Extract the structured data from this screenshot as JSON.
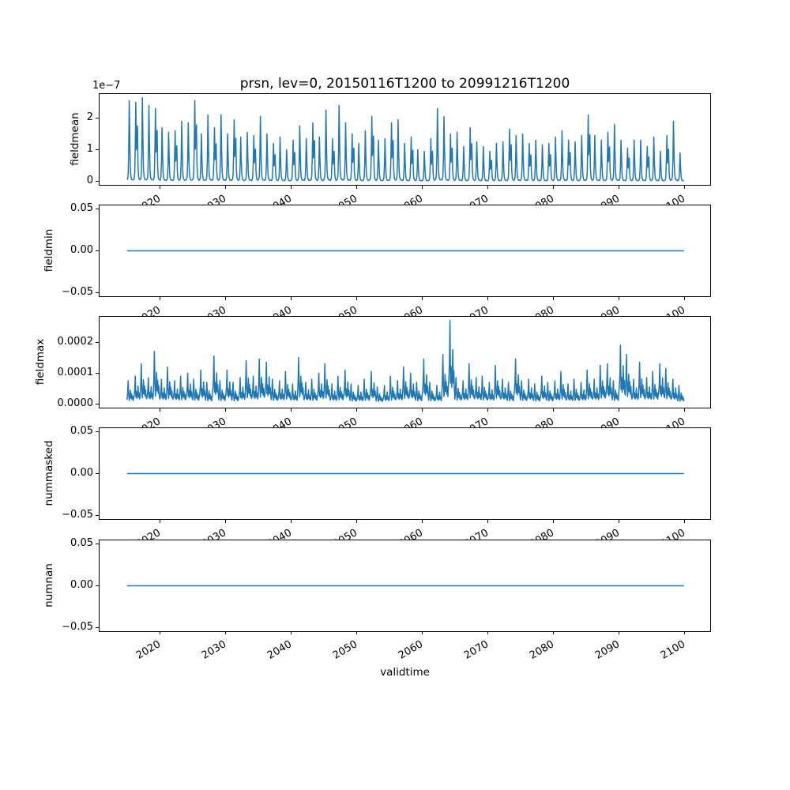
{
  "figure": {
    "title": "prsn, lev=0, 20150116T1200 to 20991216T1200",
    "xlabel": "validtime",
    "background_color": "#ffffff",
    "line_color": "#1f77b4",
    "axis_color": "#000000"
  },
  "x_axis": {
    "label": "validtime",
    "tick_labels": [
      "2020",
      "2030",
      "2040",
      "2050",
      "2060",
      "2070",
      "2080",
      "2090",
      "2100"
    ],
    "tick_values": [
      2020,
      2030,
      2040,
      2050,
      2060,
      2070,
      2080,
      2090,
      2100
    ],
    "xlim": [
      2010.74,
      2104.26
    ],
    "data_start": "20150116T1200",
    "data_end": "20991216T1200",
    "tick_label_rotation_deg": 30
  },
  "chart_data": [
    {
      "type": "line",
      "ylabel": "fieldmean",
      "y_offset_text": "1e−7",
      "y_tick_labels": [
        "0",
        "1",
        "2"
      ],
      "y_tick_values": [
        0,
        1e-07,
        2e-07
      ],
      "ylim": [
        -1.325e-08,
        2.7825e-07
      ],
      "series": {
        "name": "fieldmean",
        "kind": "annual_spikes",
        "value_scale": 1e-07,
        "annual_peak_values": [
          2.55,
          2.5,
          2.65,
          2.4,
          2.3,
          1.7,
          1.55,
          1.6,
          1.9,
          1.85,
          2.55,
          1.5,
          2.1,
          1.7,
          2.1,
          1.5,
          1.95,
          1.4,
          1.55,
          1.45,
          2.05,
          1.5,
          1.2,
          1.4,
          1.0,
          1.3,
          1.75,
          1.35,
          1.85,
          1.4,
          2.25,
          1.35,
          2.4,
          1.85,
          1.5,
          1.2,
          1.6,
          2.05,
          1.3,
          1.35,
          1.85,
          1.95,
          1.2,
          1.4,
          1.0,
          0.95,
          1.35,
          2.3,
          2.05,
          1.5,
          1.55,
          1.1,
          1.7,
          1.25,
          1.1,
          0.95,
          1.2,
          1.25,
          1.65,
          1.45,
          1.5,
          1.2,
          1.3,
          1.15,
          1.2,
          1.4,
          1.6,
          1.3,
          1.25,
          1.45,
          2.1,
          1.45,
          1.3,
          1.55,
          1.8,
          1.3,
          1.05,
          1.3,
          1.3,
          1.1,
          1.4,
          0.95,
          1.45,
          1.9,
          0.9
        ],
        "start_year": 2015,
        "monthly_profile_single": [
          0.02,
          0.03,
          0.08,
          0.35,
          1.0,
          0.5,
          0.15,
          0.06,
          0.03,
          0.02,
          0.02,
          0.02
        ],
        "monthly_profile_double": [
          0.02,
          0.03,
          0.1,
          0.45,
          1.0,
          0.4,
          0.6,
          0.7,
          0.2,
          0.06,
          0.03,
          0.02
        ],
        "profile_rule": "years with index % 3 == 1 use the double profile"
      }
    },
    {
      "type": "line",
      "ylabel": "fieldmin",
      "y_tick_labels": [
        "−0.05",
        "0.00",
        "0.05"
      ],
      "y_tick_values": [
        -0.05,
        0.0,
        0.05
      ],
      "ylim": [
        -0.055,
        0.055
      ],
      "series": {
        "name": "fieldmin",
        "kind": "constant",
        "constant_value": 0.0,
        "x_start": 2015.042,
        "x_end": 2099.958
      }
    },
    {
      "type": "line",
      "ylabel": "fieldmax",
      "y_tick_labels": [
        "0.0000",
        "0.0001",
        "0.0002"
      ],
      "y_tick_values": [
        0.0,
        0.0001,
        0.0002
      ],
      "ylim": [
        -1.35e-05,
        0.0002835
      ],
      "series": {
        "name": "fieldmax",
        "kind": "annual_spikes",
        "value_scale": 0.0001,
        "baseline_value": 4e-06,
        "annual_peak_values": [
          0.75,
          0.9,
          1.3,
          0.85,
          1.7,
          0.8,
          1.2,
          0.75,
          0.9,
          1.0,
          0.8,
          1.1,
          0.7,
          1.55,
          0.75,
          1.1,
          0.7,
          0.85,
          1.4,
          0.9,
          1.45,
          1.35,
          0.8,
          0.75,
          1.05,
          0.65,
          1.5,
          0.7,
          0.8,
          1.0,
          1.3,
          0.65,
          0.9,
          1.1,
          0.65,
          0.6,
          0.8,
          1.05,
          0.55,
          0.6,
          0.9,
          0.75,
          1.2,
          1.0,
          0.7,
          1.45,
          0.7,
          0.6,
          1.6,
          2.7,
          0.85,
          0.75,
          1.3,
          0.85,
          0.9,
          0.7,
          1.25,
          0.8,
          0.7,
          1.45,
          0.75,
          0.8,
          0.65,
          0.9,
          0.7,
          0.75,
          1.05,
          0.65,
          0.8,
          0.7,
          1.1,
          0.8,
          1.25,
          1.3,
          0.75,
          1.9,
          1.6,
          0.8,
          1.35,
          0.85,
          1.05,
          1.3,
          1.15,
          0.8,
          0.6
        ],
        "start_year": 2015,
        "monthly_profile_single": [
          0.18,
          0.45,
          1.0,
          0.4,
          0.15,
          0.3,
          0.6,
          0.25,
          0.45,
          0.2,
          0.35,
          0.15
        ],
        "monthly_profile_double": [
          0.2,
          0.3,
          0.5,
          1.0,
          0.25,
          0.45,
          0.2,
          0.3,
          0.65,
          0.25,
          0.4,
          0.18
        ],
        "profile_rule": "odd year indices use the double profile"
      }
    },
    {
      "type": "line",
      "ylabel": "nummasked",
      "y_tick_labels": [
        "−0.05",
        "0.00",
        "0.05"
      ],
      "y_tick_values": [
        -0.05,
        0.0,
        0.05
      ],
      "ylim": [
        -0.055,
        0.055
      ],
      "series": {
        "name": "nummasked",
        "kind": "constant",
        "constant_value": 0.0,
        "x_start": 2015.042,
        "x_end": 2099.958
      }
    },
    {
      "type": "line",
      "ylabel": "numnan",
      "y_tick_labels": [
        "−0.05",
        "0.00",
        "0.05"
      ],
      "y_tick_values": [
        -0.05,
        0.0,
        0.05
      ],
      "ylim": [
        -0.055,
        0.055
      ],
      "series": {
        "name": "numnan",
        "kind": "constant",
        "constant_value": 0.0,
        "x_start": 2015.042,
        "x_end": 2099.958
      }
    }
  ]
}
